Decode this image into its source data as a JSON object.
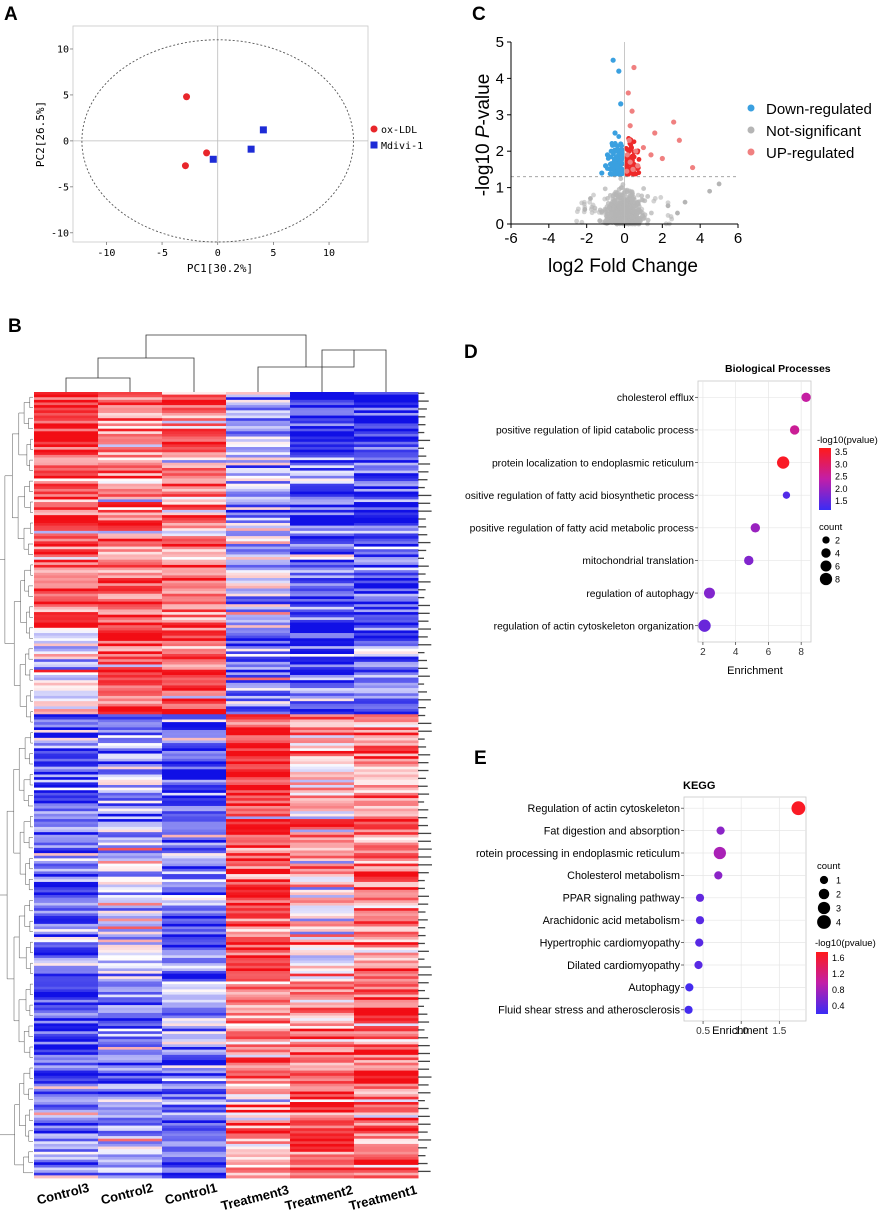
{
  "panel_labels": {
    "a": "A",
    "b": "B",
    "c": "C",
    "d": "D",
    "e": "E"
  },
  "colors": {
    "red": "#e8262b",
    "blue": "#1d2bd6",
    "up": "#f08080",
    "down": "#3aa0e0",
    "ns": "#b5b5b5",
    "heat_high": "#f20d14",
    "heat_mid": "#ffffff",
    "heat_low": "#1010e6"
  },
  "chart_data": [
    {
      "id": "A",
      "type": "scatter",
      "title": "",
      "xlabel": "PC1[30.2%]",
      "ylabel": "PC2[26.5%]",
      "xlim": [
        -13,
        13.5
      ],
      "ylim": [
        -11,
        12.5
      ],
      "xticks": [
        -10,
        -5,
        0,
        5,
        10
      ],
      "yticks": [
        -10,
        -5,
        0,
        5,
        10
      ],
      "xtick_labels": [
        "-10",
        "-5",
        "0",
        "5",
        "10"
      ],
      "ytick_labels": [
        "-10",
        "-5",
        "0",
        "5",
        "10"
      ],
      "ellipse": {
        "rx": 12.2,
        "ry": 11
      },
      "series": [
        {
          "name": "ox-LDL",
          "marker": "circle",
          "color": "#e8262b",
          "points": [
            [
              -2.8,
              4.8
            ],
            [
              -1.0,
              -1.3
            ],
            [
              -2.9,
              -2.7
            ]
          ]
        },
        {
          "name": "Mdivi-1",
          "marker": "square",
          "color": "#1d2bd6",
          "points": [
            [
              4.1,
              1.2
            ],
            [
              3.0,
              -0.9
            ],
            [
              -0.4,
              -2.0
            ]
          ]
        }
      ]
    },
    {
      "id": "C",
      "type": "scatter",
      "title": "",
      "xlabel": "log2 Fold Change",
      "ylabel_prefix": "-log10 ",
      "ylabel_italic": "P",
      "ylabel_suffix": "-value",
      "xlim": [
        -6,
        6
      ],
      "ylim": [
        0,
        5
      ],
      "xticks": [
        -6,
        -4,
        -2,
        0,
        2,
        4,
        6
      ],
      "yticks": [
        0,
        1,
        2,
        3,
        4,
        5
      ],
      "xtick_labels": [
        "-6",
        "-4",
        "-2",
        "0",
        "2",
        "4",
        "6"
      ],
      "ytick_labels": [
        "0",
        "1",
        "2",
        "3",
        "4",
        "5"
      ],
      "threshold_y": 1.3,
      "threshold_x": 0,
      "legend": [
        "Down-regulated",
        "Not-significant",
        "UP-regulated"
      ],
      "legend_colors": [
        "#3aa0e0",
        "#b5b5b5",
        "#f08080"
      ],
      "up_points": [
        [
          0.5,
          4.3
        ],
        [
          0.2,
          3.6
        ],
        [
          2.6,
          2.8
        ],
        [
          2.9,
          2.3
        ],
        [
          1.6,
          2.5
        ],
        [
          0.4,
          3.1
        ],
        [
          0.3,
          2.7
        ],
        [
          1.0,
          2.1
        ],
        [
          1.4,
          1.9
        ],
        [
          2.0,
          1.8
        ],
        [
          3.6,
          1.55
        ],
        [
          0.6,
          2.0
        ],
        [
          0.25,
          2.3
        ],
        [
          0.15,
          1.9
        ],
        [
          0.3,
          1.7
        ],
        [
          0.45,
          1.5
        ],
        [
          0.7,
          1.6
        ],
        [
          0.12,
          1.45
        ]
      ],
      "down_points": [
        [
          -0.6,
          4.5
        ],
        [
          -0.3,
          4.2
        ],
        [
          -0.2,
          3.3
        ],
        [
          -0.5,
          2.5
        ],
        [
          -0.7,
          2.0
        ],
        [
          -0.4,
          1.8
        ],
        [
          -1.0,
          1.6
        ],
        [
          -0.9,
          1.9
        ],
        [
          -0.2,
          2.2
        ],
        [
          -0.15,
          1.5
        ],
        [
          -0.35,
          1.45
        ],
        [
          -1.2,
          1.4
        ],
        [
          -0.6,
          1.55
        ]
      ],
      "ns_outliers": [
        [
          5.0,
          1.1
        ],
        [
          4.5,
          0.9
        ],
        [
          -2.1,
          0.4
        ],
        [
          -1.8,
          0.7
        ],
        [
          2.3,
          0.5
        ],
        [
          2.8,
          0.3
        ],
        [
          3.2,
          0.6
        ]
      ]
    },
    {
      "id": "B",
      "type": "heatmap",
      "columns": [
        "Control3",
        "Control2",
        "Control1",
        "Treatment3",
        "Treatment2",
        "Treatment1"
      ],
      "n_rows": 300,
      "legend": []
    },
    {
      "id": "D",
      "type": "scatter",
      "title": "Biological Processes",
      "xlabel": "Enrichment",
      "xlim": [
        1.7,
        8.6
      ],
      "xticks": [
        2,
        4,
        6,
        8
      ],
      "xtick_labels": [
        "2",
        "4",
        "6",
        "8"
      ],
      "categories": [
        "cholesterol efflux",
        "positive regulation of lipid catabolic process",
        "protein localization to endoplasmic reticulum",
        "ositive regulation of fatty acid biosynthetic process",
        "positive regulation of fatty acid metabolic process",
        "mitochondrial translation",
        "regulation of autophagy",
        "regulation of actin cytoskeleton organization"
      ],
      "enrichment": [
        8.3,
        7.6,
        6.9,
        7.1,
        5.2,
        4.8,
        2.4,
        2.1
      ],
      "count": [
        4,
        4,
        8,
        2,
        4,
        4,
        6,
        8
      ],
      "neglog10p": [
        2.5,
        2.6,
        3.5,
        1.5,
        2.1,
        1.9,
        1.9,
        1.7
      ],
      "color_legend_title": "-log10(pvalue)",
      "color_ticks": [
        "3.5",
        "3.0",
        "2.5",
        "2.0",
        "1.5"
      ],
      "color_range": [
        1.3,
        3.6
      ],
      "size_legend_title": "count",
      "size_ticks": [
        "2",
        "4",
        "6",
        "8"
      ]
    },
    {
      "id": "E",
      "type": "scatter",
      "title": "KEGG",
      "xlabel": "Enrichment",
      "xlim": [
        0.25,
        1.85
      ],
      "xticks": [
        0.5,
        1.0,
        1.5
      ],
      "xtick_labels": [
        "0.5",
        "1.0",
        "1.5"
      ],
      "categories": [
        "Regulation of actin cytoskeleton",
        "Fat digestion and absorption",
        "rotein processing in endoplasmic reticulum",
        "Cholesterol metabolism",
        "PPAR signaling pathway",
        "Arachidonic acid metabolism",
        "Hypertrophic cardiomyopathy",
        "Dilated cardiomyopathy",
        "Autophagy",
        "Fluid shear stress and atherosclerosis"
      ],
      "enrichment": [
        1.75,
        0.73,
        0.72,
        0.7,
        0.46,
        0.46,
        0.45,
        0.44,
        0.32,
        0.31
      ],
      "count": [
        4,
        1,
        3,
        1,
        1,
        1,
        1,
        1,
        1,
        1
      ],
      "neglog10p": [
        1.65,
        0.75,
        0.9,
        0.75,
        0.55,
        0.5,
        0.5,
        0.5,
        0.4,
        0.4
      ],
      "size_legend_title": "count",
      "size_ticks": [
        "1",
        "2",
        "3",
        "4"
      ],
      "color_legend_title": "-log10(pvalue)",
      "color_ticks": [
        "1.6",
        "1.2",
        "0.8",
        "0.4"
      ],
      "color_range": [
        0.35,
        1.7
      ]
    }
  ]
}
